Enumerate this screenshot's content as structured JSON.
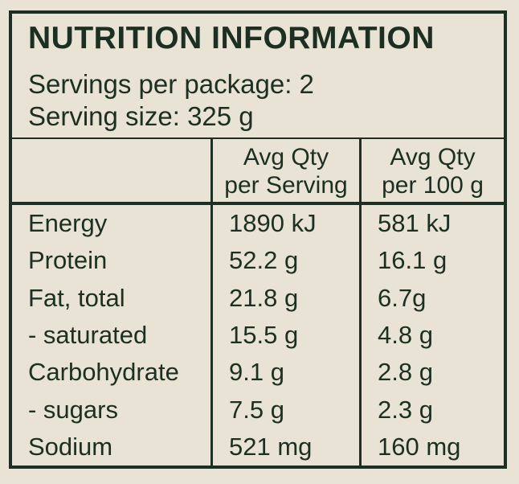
{
  "label": {
    "title": "NUTRITION INFORMATION",
    "servings_per_package": "Servings per package: 2",
    "serving_size": "Serving size: 325 g"
  },
  "table": {
    "header": {
      "per_serving_line1": "Avg Qty",
      "per_serving_line2": "per Serving",
      "per_100g_line1": "Avg Qty",
      "per_100g_line2": "per 100 g"
    },
    "rows": [
      {
        "nutrient": "Energy",
        "per_serving": "1890 kJ",
        "per_100g": "581 kJ"
      },
      {
        "nutrient": "Protein",
        "per_serving": "52.2 g",
        "per_100g": "16.1 g"
      },
      {
        "nutrient": "Fat, total",
        "per_serving": "21.8 g",
        "per_100g": "6.7g"
      },
      {
        "nutrient": "- saturated",
        "per_serving": "15.5 g",
        "per_100g": "4.8 g"
      },
      {
        "nutrient": "Carbohydrate",
        "per_serving": "9.1 g",
        "per_100g": "2.8 g"
      },
      {
        "nutrient": "- sugars",
        "per_serving": "7.5 g",
        "per_100g": "2.3 g"
      },
      {
        "nutrient": "Sodium",
        "per_serving": "521 mg",
        "per_100g": "160 mg"
      }
    ]
  },
  "colors": {
    "background": "#e8e3d4",
    "ink": "#1c2f22"
  }
}
